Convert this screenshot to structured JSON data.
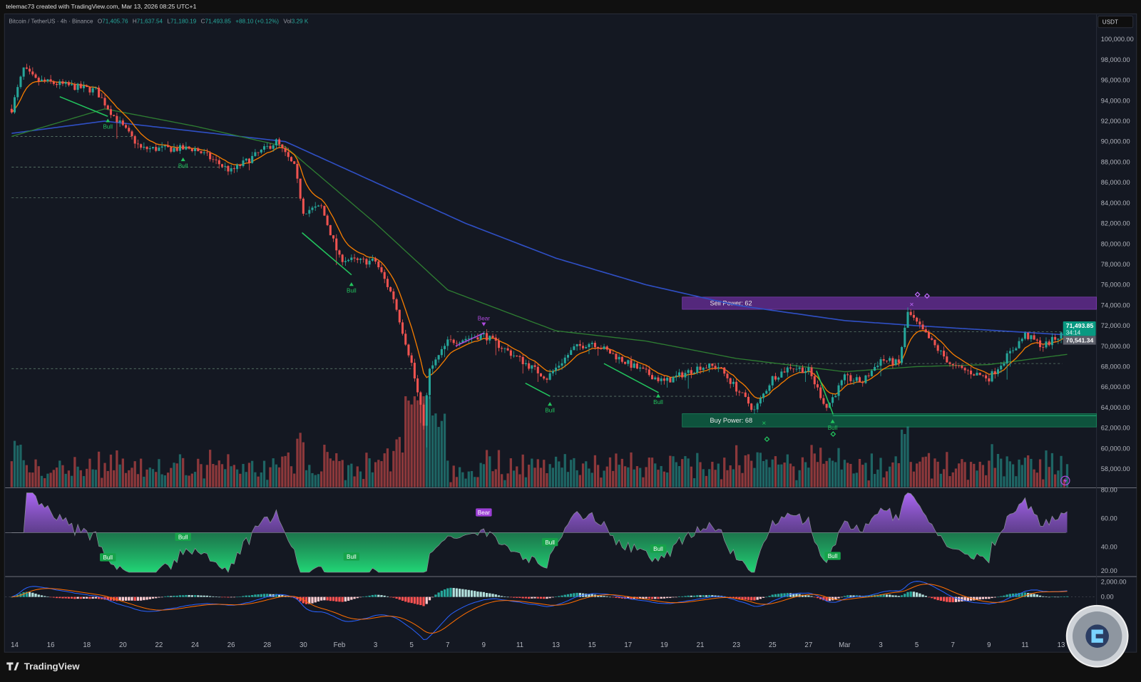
{
  "header": {
    "attribution": "telemac73 created with TradingView.com, Mar 13, 2026 08:25 UTC+1"
  },
  "legend": {
    "symbol": "Bitcoin / TetherUS · 4h · Binance",
    "open_label": "O",
    "open": "71,405.76",
    "high_label": "H",
    "high": "71,637.54",
    "low_label": "L",
    "low": "71,180.19",
    "close_label": "C",
    "close": "71,493.85",
    "change": "+88.10 (+0.12%)",
    "vol_label": "Vol",
    "vol": "3.29 K"
  },
  "currency_button": "USDT",
  "price_tag": {
    "price": "71,493.85",
    "countdown": "34:14",
    "level": "70,541.34"
  },
  "branding": {
    "logo_text": "TradingView"
  },
  "colors": {
    "background": "#131722",
    "up": "#26a69a",
    "down": "#ef5350",
    "ema_fast": "#f57c00",
    "ma_mid": "#2e7d32",
    "ma_slow": "#2f4fc4",
    "sell_zone": "#5b2a86",
    "buy_zone": "#0d5a40",
    "bull": "#22c55e",
    "bear": "#b04ae0"
  },
  "chart_data": {
    "type": "candlestick",
    "symbol": "BTCUSDT",
    "interval": "4h",
    "price_axis": {
      "ylim": [
        57000,
        101000
      ],
      "ticks": [
        "100,000.00",
        "98,000.00",
        "96,000.00",
        "94,000.00",
        "92,000.00",
        "90,000.00",
        "88,000.00",
        "86,000.00",
        "84,000.00",
        "82,000.00",
        "80,000.00",
        "78,000.00",
        "76,000.00",
        "74,000.00",
        "72,000.00",
        "70,000.00",
        "68,000.00",
        "66,000.00",
        "64,000.00",
        "62,000.00",
        "60,000.00",
        "58,000.00"
      ]
    },
    "date_axis": [
      "14",
      "16",
      "18",
      "20",
      "22",
      "24",
      "26",
      "28",
      "30",
      "Feb",
      "3",
      "5",
      "7",
      "9",
      "11",
      "13",
      "15",
      "17",
      "19",
      "21",
      "23",
      "25",
      "27",
      "Mar",
      "3",
      "5",
      "7",
      "9",
      "11",
      "13"
    ],
    "price_path": [
      [
        "2026-01-13T20:00",
        93200
      ],
      [
        "2026-01-14T12:00",
        97100
      ],
      [
        "2026-01-15T04:00",
        96000
      ],
      [
        "2026-01-18T12:00",
        95000
      ],
      [
        "2026-01-19T12:00",
        92500
      ],
      [
        "2026-01-21T00:00",
        89300
      ],
      [
        "2026-01-24T00:00",
        89300
      ],
      [
        "2026-01-26T00:00",
        87100
      ],
      [
        "2026-01-28T12:00",
        90000
      ],
      [
        "2026-01-29T12:00",
        87500
      ],
      [
        "2026-01-30T00:00",
        83200
      ],
      [
        "2026-01-31T00:00",
        83600
      ],
      [
        "2026-02-01T00:00",
        78600
      ],
      [
        "2026-02-02T00:00",
        78300
      ],
      [
        "2026-02-03T00:00",
        78300
      ],
      [
        "2026-02-04T00:00",
        74700
      ],
      [
        "2026-02-05T00:00",
        68300
      ],
      [
        "2026-02-05T16:00",
        62500
      ],
      [
        "2026-02-06T00:00",
        67600
      ],
      [
        "2026-02-07T00:00",
        70400
      ],
      [
        "2026-02-09T00:00",
        71100
      ],
      [
        "2026-02-11T00:00",
        68700
      ],
      [
        "2026-02-12T12:00",
        66900
      ],
      [
        "2026-02-14T00:00",
        69800
      ],
      [
        "2026-02-15T00:00",
        70400
      ],
      [
        "2026-02-17T00:00",
        68300
      ],
      [
        "2026-02-19T00:00",
        66500
      ],
      [
        "2026-02-21T00:00",
        68000
      ],
      [
        "2026-02-22T00:00",
        68000
      ],
      [
        "2026-02-23T12:00",
        64800
      ],
      [
        "2026-02-24T00:00",
        63700
      ],
      [
        "2026-02-25T00:00",
        66900
      ],
      [
        "2026-02-26T00:00",
        68000
      ],
      [
        "2026-02-27T00:00",
        67600
      ],
      [
        "2026-02-28T00:00",
        64000
      ],
      [
        "2026-03-01T00:00",
        66900
      ],
      [
        "2026-03-02T00:00",
        66500
      ],
      [
        "2026-03-03T00:00",
        68700
      ],
      [
        "2026-03-04T00:00",
        68300
      ],
      [
        "2026-03-04T12:00",
        73300
      ],
      [
        "2026-03-05T00:00",
        72200
      ],
      [
        "2026-03-06T00:00",
        70000
      ],
      [
        "2026-03-07T00:00",
        68000
      ],
      [
        "2026-03-09T00:00",
        66900
      ],
      [
        "2026-03-10T00:00",
        69000
      ],
      [
        "2026-03-11T00:00",
        71100
      ],
      [
        "2026-03-12T00:00",
        70000
      ],
      [
        "2026-03-13T08:00",
        71494
      ]
    ],
    "series": [
      {
        "values": [
          [
            "2026-01-13T20:00",
            90800
          ],
          [
            "2026-01-19T00:00",
            92000
          ],
          [
            "2026-01-24T00:00",
            91000
          ],
          [
            "2026-01-29T00:00",
            90000
          ],
          [
            "2026-02-03T00:00",
            86000
          ],
          [
            "2026-02-08T00:00",
            82000
          ],
          [
            "2026-02-13T00:00",
            78600
          ],
          [
            "2026-02-18T00:00",
            76000
          ],
          [
            "2026-02-23T00:00",
            74000
          ],
          [
            "2026-03-01T00:00",
            72500
          ],
          [
            "2026-03-05T00:00",
            72000
          ],
          [
            "2026-03-13T08:00",
            71100
          ]
        ]
      },
      {
        "values": [
          [
            "2026-01-13T20:00",
            90500
          ],
          [
            "2026-01-19T00:00",
            93200
          ],
          [
            "2026-01-24T00:00",
            91500
          ],
          [
            "2026-01-29T00:00",
            89500
          ],
          [
            "2026-02-03T00:00",
            82000
          ],
          [
            "2026-02-07T00:00",
            75500
          ],
          [
            "2026-02-13T00:00",
            71500
          ],
          [
            "2026-02-18T00:00",
            70500
          ],
          [
            "2026-02-23T00:00",
            68800
          ],
          [
            "2026-03-01T00:00",
            67500
          ],
          [
            "2026-03-05T00:00",
            68000
          ],
          [
            "2026-03-09T00:00",
            68200
          ],
          [
            "2026-03-13T08:00",
            69200
          ]
        ]
      }
    ],
    "zones": [
      {
        "label": "Sell Power: 62",
        "from": "2026-02-20T00:00",
        "top": 74800,
        "bottom": 73600,
        "kind": "sell"
      },
      {
        "label": "Buy Power: 68",
        "from": "2026-02-20T00:00",
        "top": 63400,
        "bottom": 62100,
        "kind": "buy"
      }
    ],
    "levels": [
      {
        "price": 90500,
        "from": "2026-01-13T20:00",
        "to": "2026-01-20T12:00"
      },
      {
        "price": 87500,
        "from": "2026-01-13T20:00",
        "to": "2026-01-25T20:00"
      },
      {
        "price": 84500,
        "from": "2026-01-13T20:00",
        "to": "2026-01-29T16:00"
      },
      {
        "price": 67800,
        "from": "2026-01-13T20:00",
        "to": "2026-02-05T08:00"
      },
      {
        "price": 71400,
        "from": "2026-02-07T12:00",
        "to": "2026-03-14T12:00"
      },
      {
        "price": 65100,
        "from": "2026-02-12T20:00",
        "to": "2026-02-22T20:00"
      },
      {
        "price": 68300,
        "from": "2026-02-20T00:00",
        "to": "2026-03-14T12:00"
      }
    ],
    "signals": [
      {
        "text": "Bull",
        "time": "2026-01-19T04:00",
        "price": 92100,
        "rsi": 32.3
      },
      {
        "text": "Bull",
        "time": "2026-01-23T08:00",
        "price": 88300,
        "rsi": 46.7
      },
      {
        "text": "Bull",
        "time": "2026-02-01T16:00",
        "price": 76100,
        "rsi": 32.8
      },
      {
        "text": "Bear",
        "time": "2026-02-09T00:00",
        "price": 72100,
        "rsi": 64
      },
      {
        "text": "Bull",
        "time": "2026-02-12T16:00",
        "price": 64400,
        "rsi": 43
      },
      {
        "text": "Bull",
        "time": "2026-02-18T16:00",
        "price": 65200,
        "rsi": 38.5
      },
      {
        "text": "Bull",
        "time": "2026-02-28T08:00",
        "price": 62700,
        "rsi": 33.3
      }
    ],
    "oscillator": {
      "ticks": [
        "80.00",
        "60.00",
        "40.00",
        "20.00"
      ]
    },
    "macd": {
      "ticks": [
        "2,000.00",
        "0.00"
      ]
    }
  }
}
